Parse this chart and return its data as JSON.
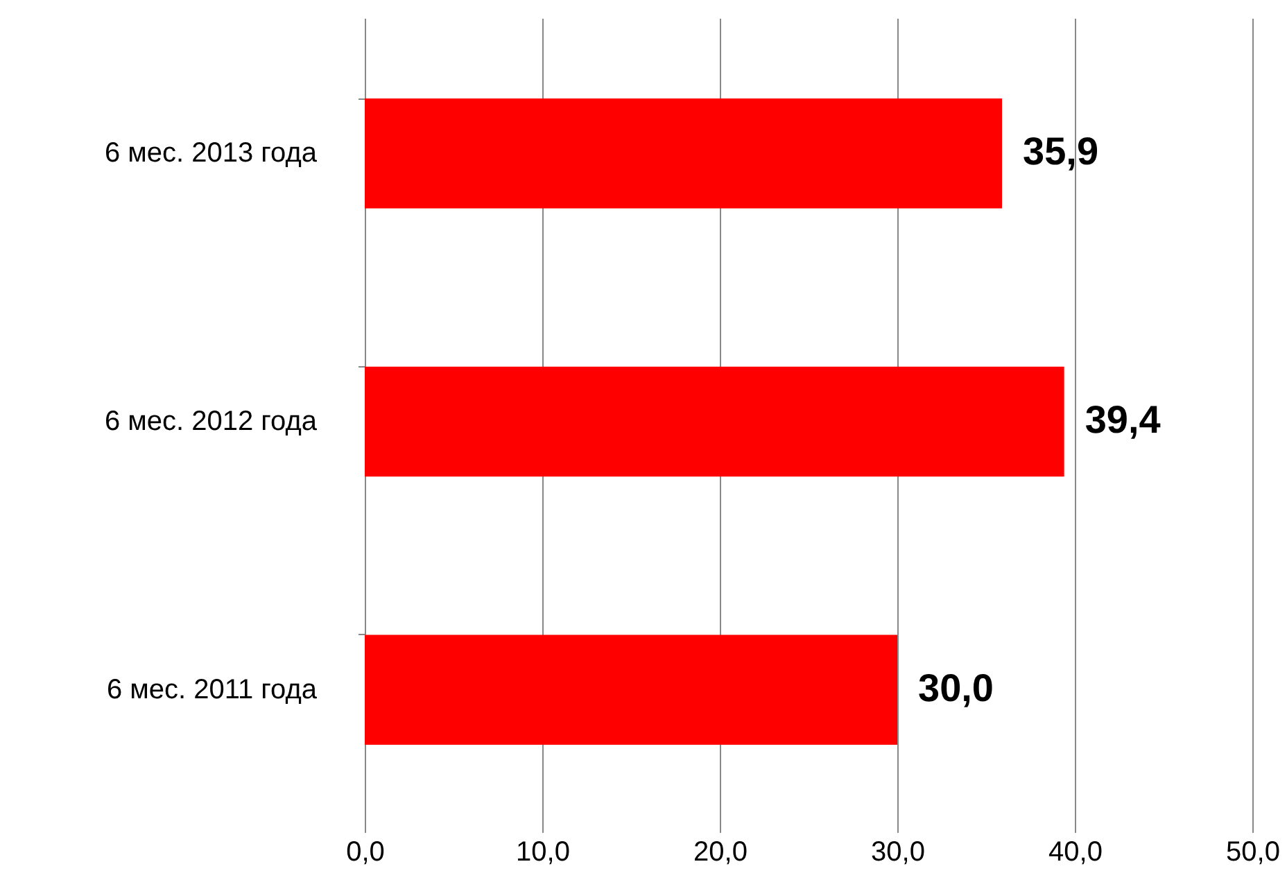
{
  "chart_data": {
    "type": "bar",
    "orientation": "horizontal",
    "categories": [
      "6 мес. 2013 года",
      "6 мес. 2012 года",
      "6 мес. 2011 года"
    ],
    "values": [
      35.9,
      39.4,
      30.0
    ],
    "value_labels": [
      "35,9",
      "39,4",
      "30,0"
    ],
    "color": "#ff0000",
    "xlim": [
      0,
      50
    ],
    "xticks": [
      {
        "value": 0,
        "label": "0,0"
      },
      {
        "value": 10,
        "label": "10,0"
      },
      {
        "value": 20,
        "label": "20,0"
      },
      {
        "value": 30,
        "label": "30,0"
      },
      {
        "value": 40,
        "label": "40,0"
      },
      {
        "value": 50,
        "label": "50,0"
      }
    ],
    "grid": "x"
  }
}
